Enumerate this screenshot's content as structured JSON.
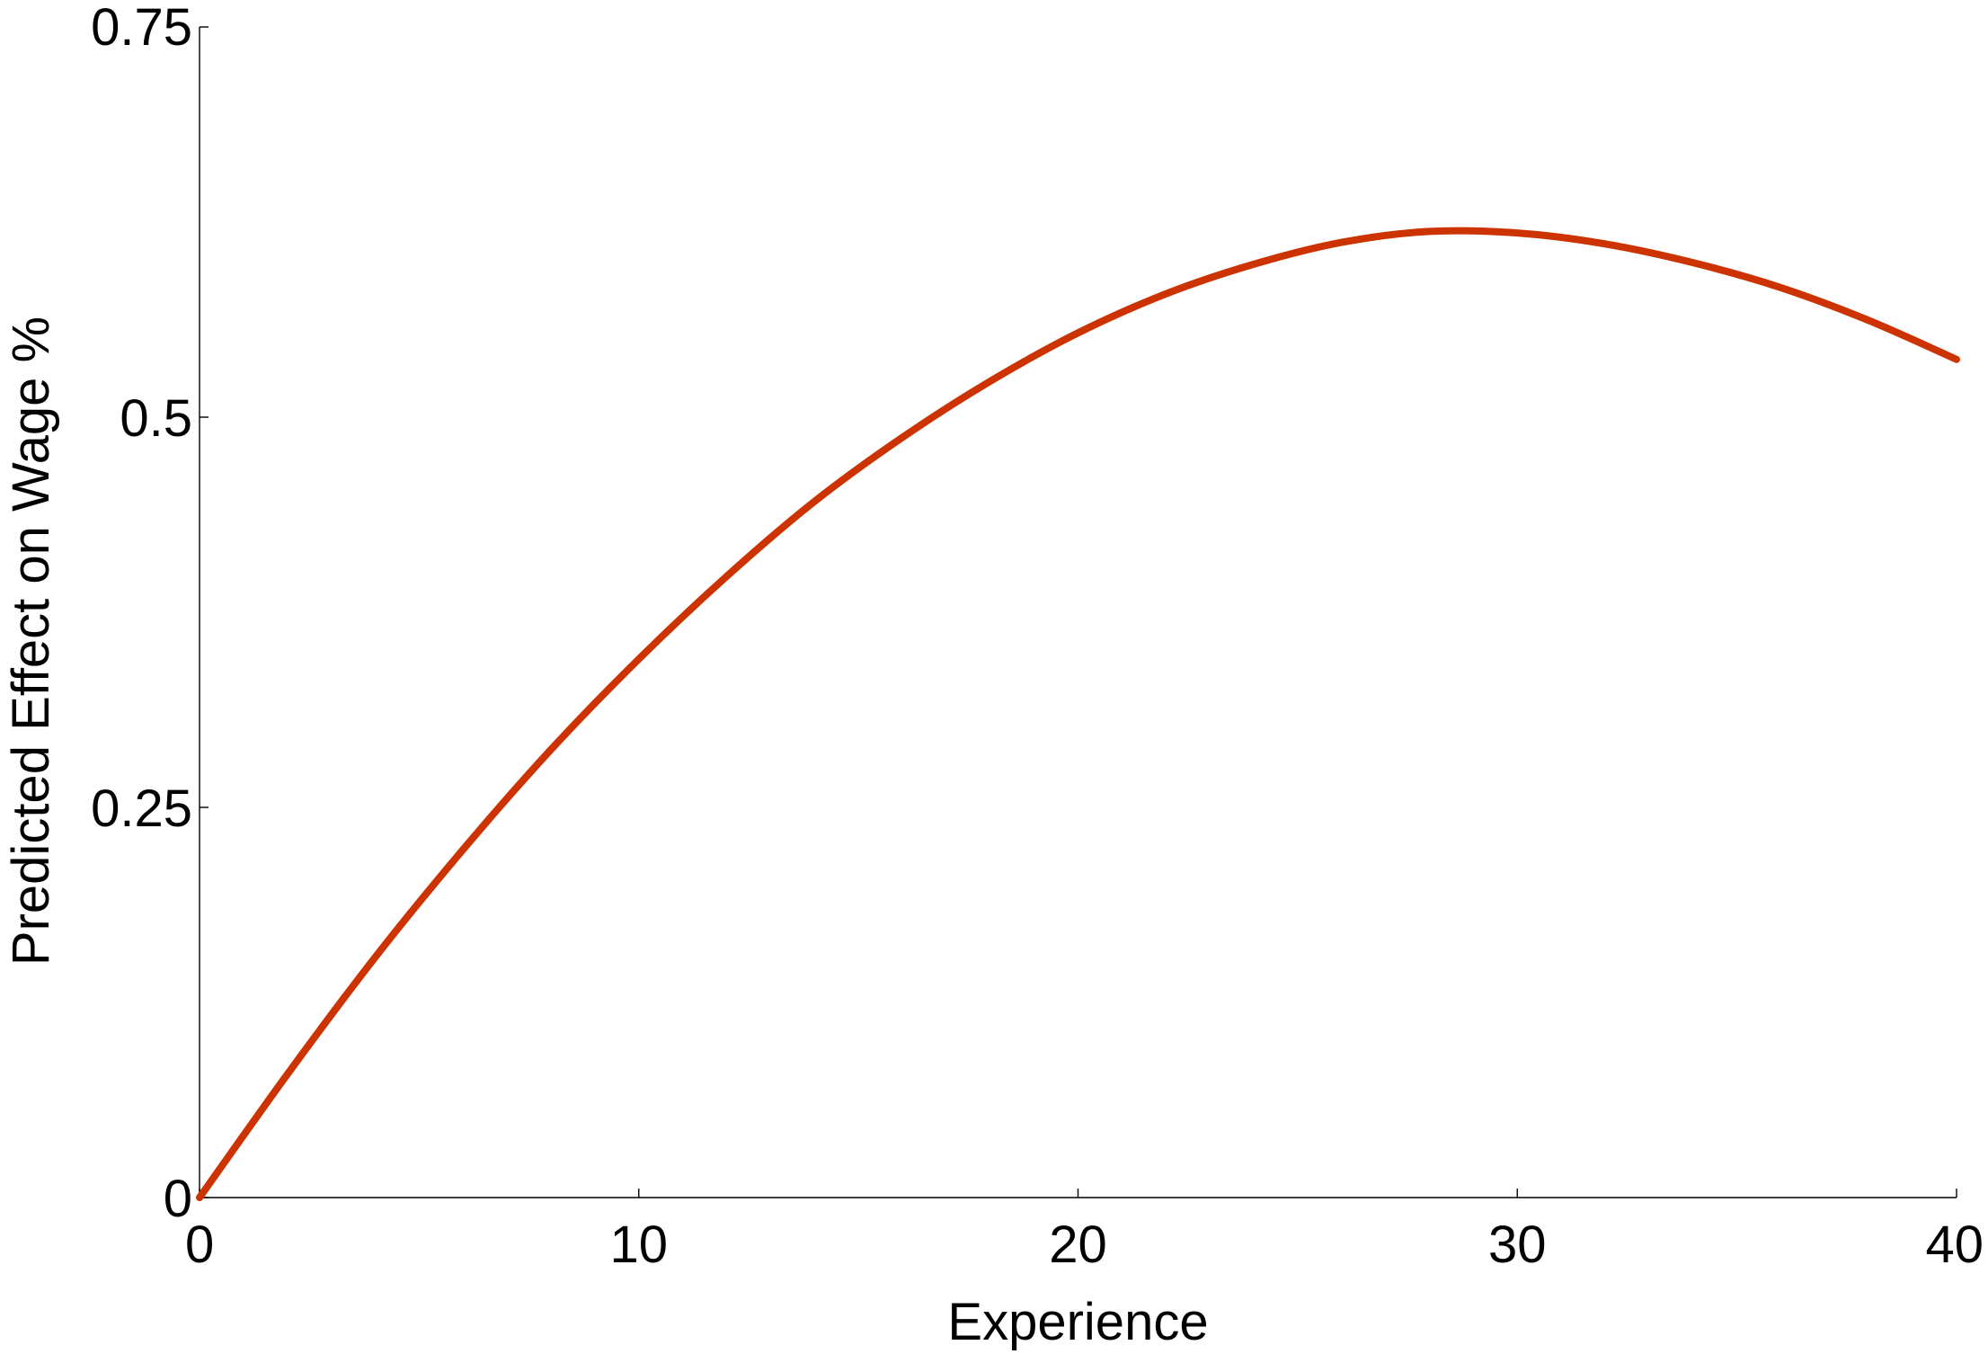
{
  "chart_data": {
    "type": "line",
    "title": "",
    "xlabel": "Experience",
    "ylabel": "Predicted Effect on Wage %",
    "xlim": [
      0,
      40
    ],
    "ylim": [
      0,
      0.75
    ],
    "x_ticks": [
      0,
      10,
      20,
      30,
      40
    ],
    "x_tick_labels": [
      "0",
      "10",
      "20",
      "30",
      "40"
    ],
    "y_ticks": [
      0,
      0.25,
      0.5,
      0.75
    ],
    "y_tick_labels": [
      "0",
      "0.25",
      "0.5",
      "0.75"
    ],
    "grid": false,
    "legend": "none",
    "line_color": "#cc3300",
    "series": [
      {
        "x": [
          0,
          2,
          4,
          6,
          8,
          10,
          12,
          14,
          16,
          18,
          20,
          22,
          24,
          26,
          28,
          30,
          32,
          34,
          36,
          38,
          40
        ],
        "values": [
          0,
          0.079,
          0.154,
          0.223,
          0.287,
          0.345,
          0.398,
          0.446,
          0.487,
          0.523,
          0.554,
          0.579,
          0.598,
          0.612,
          0.619,
          0.618,
          0.611,
          0.599,
          0.583,
          0.562,
          0.537
        ]
      }
    ]
  }
}
